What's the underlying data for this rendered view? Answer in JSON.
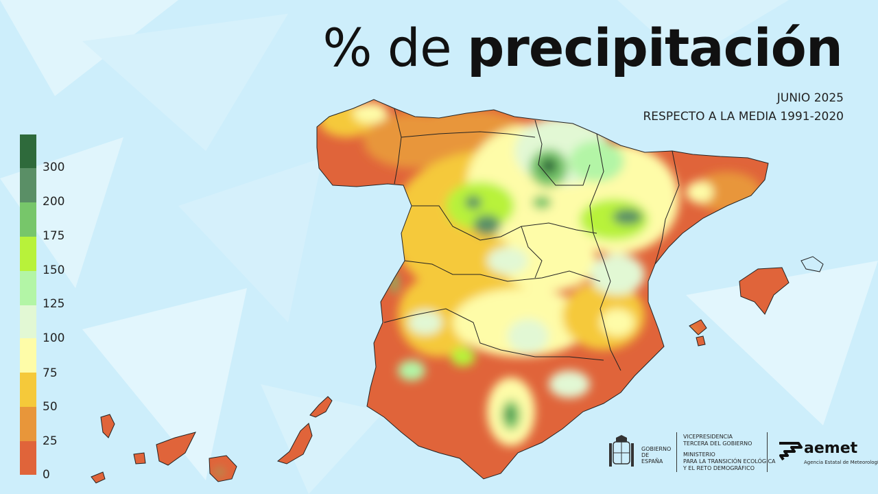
{
  "title": {
    "light": "% de",
    "bold": "precipitación"
  },
  "subtitle_month": "JUNIO 2025",
  "subtitle_reference": "RESPECTO A LA MEDIA 1991-2020",
  "legend": {
    "labels": [
      "300",
      "200",
      "175",
      "150",
      "125",
      "100",
      "75",
      "50",
      "25",
      "0"
    ],
    "colors": [
      "#2e6a3b",
      "#5a8f66",
      "#77c66a",
      "#b8f23a",
      "#b3f5a6",
      "#e2f8d4",
      "#fefca8",
      "#f5c93a",
      "#e8963a",
      "#e0643a"
    ]
  },
  "colors": {
    "background": "#cdeefb",
    "sea_shard": "#e3f6fd",
    "region_border": "#222222"
  },
  "logos": {
    "gobierno": "GOBIERNO DE ESPAÑA",
    "vicepresidencia": [
      "VICEPRESIDENCIA",
      "TERCERA DEL GOBIERNO"
    ],
    "ministerio": [
      "MINISTERIO",
      "PARA LA TRANSICIÓN ECOLÓGICA",
      "Y EL RETO DEMOGRÁFICO"
    ],
    "aemet_name": "aemet",
    "aemet_subtitle": "Agencia Estatal de Meteorología"
  }
}
